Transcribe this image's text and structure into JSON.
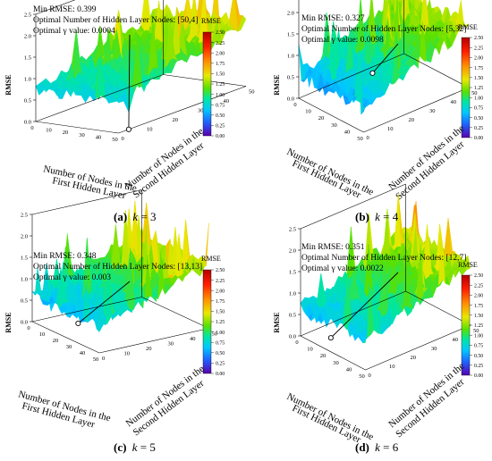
{
  "chart_data": [
    {
      "type": "surface",
      "panel_label": "(a)",
      "k": "3",
      "annotation": {
        "min_rmse": "Min RMSE: 0.399",
        "optimal_nodes": "Optimal Number of Hidden Layer Nodes: [50,4]",
        "optimal_gamma": "Optimal γ value: 0.0004"
      },
      "optimum": {
        "first_layer": 50,
        "second_layer": 4,
        "rmse": 0.399
      },
      "zlabel": "RMSE",
      "xlabel": "Number of Nodes in the First Hidden Layer",
      "ylabel": "Number of Nodes in the Second Hidden Layer",
      "zlim": [
        0,
        2.5
      ],
      "xlim": [
        0,
        50
      ],
      "ylim": [
        0,
        50
      ],
      "ztick_labels": [
        "0.0",
        "0.5",
        "1.0",
        "1.5",
        "2.0",
        "2.5"
      ],
      "xtick_labels": [
        "0",
        "10",
        "20",
        "30",
        "40",
        "50"
      ],
      "ytick_labels": [
        "0",
        "10",
        "20",
        "30",
        "40",
        "50"
      ],
      "surface_level": {
        "front": 0.75,
        "back": 1.5
      },
      "colorbar": {
        "title": "RMSE",
        "ticks": [
          "0.00",
          "0.25",
          "0.50",
          "0.75",
          "1.00",
          "1.25",
          "1.50",
          "1.75",
          "2.00",
          "2.25",
          "2.50"
        ]
      }
    },
    {
      "type": "surface",
      "panel_label": "(b)",
      "k": "4",
      "annotation": {
        "min_rmse": "Min RMSE: 0.327",
        "optimal_nodes": "Optimal Number of Hidden Layer Nodes: [5,32]",
        "optimal_gamma": "Optimal γ value: 0.0098"
      },
      "optimum": {
        "first_layer": 5,
        "second_layer": 32,
        "rmse": 0.327
      },
      "zlabel": "RMSE",
      "xlabel": "Number of Nodes in the First Hidden Layer",
      "ylabel": "Number of Nodes in the Second Hidden Layer",
      "zlim": [
        0,
        2.5
      ],
      "xlim": [
        0,
        50
      ],
      "ylim": [
        0,
        50
      ],
      "ztick_labels": [
        "0.0",
        "0.5",
        "1.0",
        "1.5",
        "2.0",
        "2.5"
      ],
      "xtick_labels": [
        "0",
        "10",
        "20",
        "30",
        "40",
        "50"
      ],
      "ytick_labels": [
        "0",
        "10",
        "20",
        "30",
        "40",
        "50"
      ],
      "surface_level": {
        "front": 0.55,
        "back": 1.45
      },
      "colorbar": {
        "title": "RMSE",
        "ticks": [
          "0.00",
          "0.25",
          "0.50",
          "0.75",
          "1.00",
          "1.25",
          "1.50",
          "1.75",
          "2.00",
          "2.25",
          "2.50"
        ]
      }
    },
    {
      "type": "surface",
      "panel_label": "(c)",
      "k": "5",
      "annotation": {
        "min_rmse": "Min RMSE: 0.348",
        "optimal_nodes": "Optimal Number of Hidden Layer Nodes: [13,13]",
        "optimal_gamma": "Optimal γ value: 0.003"
      },
      "optimum": {
        "first_layer": 13,
        "second_layer": 13,
        "rmse": 0.348
      },
      "zlabel": "RMSE",
      "xlabel": "Number of Nodes in the First Hidden Layer",
      "ylabel": "Number of Nodes in the Second Hidden Layer",
      "zlim": [
        0,
        2.5
      ],
      "xlim": [
        0,
        50
      ],
      "ylim": [
        0,
        50
      ],
      "ztick_labels": [
        "0.0",
        "0.5",
        "1.0",
        "1.5",
        "2.0",
        "2.5"
      ],
      "xtick_labels": [
        "0",
        "10",
        "20",
        "30",
        "40",
        "50"
      ],
      "ytick_labels": [
        "0",
        "10",
        "20",
        "30",
        "40",
        "50"
      ],
      "surface_level": {
        "front": 0.6,
        "back": 1.45
      },
      "colorbar": {
        "title": "RMSE",
        "ticks": [
          "0.00",
          "0.25",
          "0.50",
          "0.75",
          "1.00",
          "1.25",
          "1.50",
          "1.75",
          "2.00",
          "2.25",
          "2.50"
        ]
      }
    },
    {
      "type": "surface",
      "panel_label": "(d)",
      "k": "6",
      "annotation": {
        "min_rmse": "Min RMSE: 0.351",
        "optimal_nodes": "Optimal Number of Hidden Layer Nodes: [12,7]",
        "optimal_gamma": "Optimal γ value: 0.0022"
      },
      "optimum": {
        "first_layer": 12,
        "second_layer": 7,
        "rmse": 0.351
      },
      "zlabel": "RMSE",
      "xlabel": "Number of Nodes in the First Hidden Layer",
      "ylabel": "Number of Nodes in the Second Hidden Layer",
      "zlim": [
        0,
        2.5
      ],
      "xlim": [
        0,
        50
      ],
      "ylim": [
        0,
        50
      ],
      "ztick_labels": [
        "0.0",
        "0.5",
        "1.0",
        "1.5",
        "2.0",
        "2.5"
      ],
      "xtick_labels": [
        "0",
        "10",
        "20",
        "30",
        "40",
        "50"
      ],
      "ytick_labels": [
        "0",
        "10",
        "20",
        "30",
        "40",
        "50"
      ],
      "surface_level": {
        "front": 0.65,
        "back": 1.45
      },
      "colorbar": {
        "title": "RMSE",
        "ticks": [
          "0.00",
          "0.25",
          "0.50",
          "0.75",
          "1.00",
          "1.25",
          "1.50",
          "1.75",
          "2.00",
          "2.25",
          "2.50"
        ]
      }
    }
  ],
  "colors": {
    "colormap": [
      "#5a00b0",
      "#2060ff",
      "#00c8ff",
      "#00e6a0",
      "#5ae000",
      "#e8e800",
      "#ff8c00",
      "#ff1e00",
      "#b40000"
    ],
    "axis": "#000000",
    "pointer_line": "#000000",
    "marker_fill": "#ffffff"
  },
  "captions": [
    {
      "label": "(a)",
      "var": "k",
      "value": "3"
    },
    {
      "label": "(b)",
      "var": "k",
      "value": "4"
    },
    {
      "label": "(c)",
      "var": "k",
      "value": "5"
    },
    {
      "label": "(d)",
      "var": "k",
      "value": "6"
    }
  ]
}
